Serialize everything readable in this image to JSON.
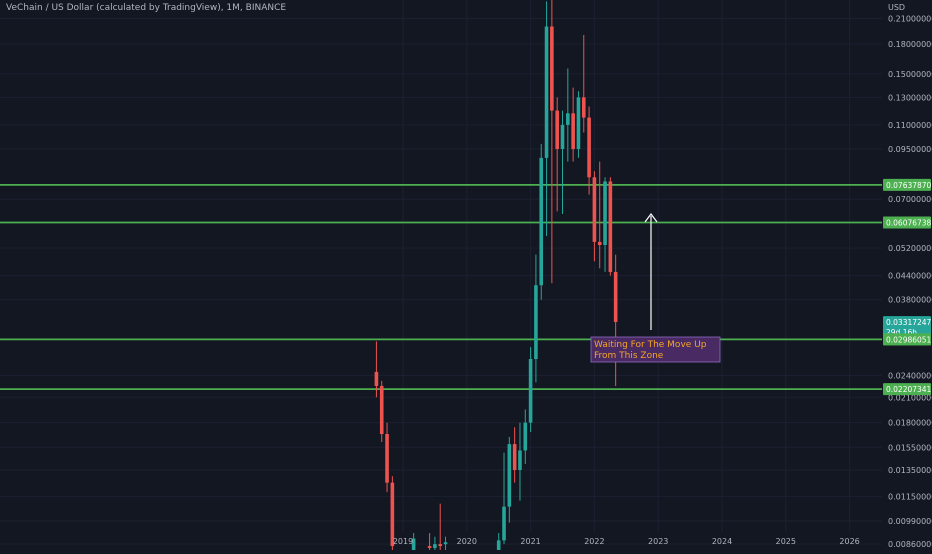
{
  "title": "VeChain / US Dollar (calculated by TradingView), 1M, BINANCE",
  "currency_label": "USD",
  "annotation": {
    "line1": "Waiting For The Move Up",
    "line2": "From This Zone"
  },
  "colors": {
    "background": "#131722",
    "grid": "#1c2030",
    "text": "#b2b5be",
    "up": "#26a69a",
    "down": "#ef5350",
    "level_line": "#4caf50",
    "level_tag": "#4caf50",
    "price_tag": "#26a69a",
    "annotation_bg": "#4a2a63",
    "annotation_border": "#8e6cc4",
    "annotation_text": "#f5a623",
    "arrow": "#ffffff"
  },
  "chart_data": {
    "type": "candlestick",
    "title": "VeChain / US Dollar (calculated by TradingView), 1M, BINANCE",
    "y_scale": "log",
    "ylim": [
      0.0083,
      0.235
    ],
    "xlim": [
      "2017-12-01",
      "2026-04-01"
    ],
    "y_ticks": [
      "0.21000000",
      "0.18000000",
      "0.15000000",
      "0.13000000",
      "0.11000000",
      "0.09500000",
      "0.07000000",
      "0.05200000",
      "0.04400000",
      "0.03800000",
      "0.02400000",
      "0.02100000",
      "0.01800000",
      "0.01550000",
      "0.01350000",
      "0.01150000",
      "0.00990000",
      "0.00860000"
    ],
    "x_ticks": [
      "2019",
      "2020",
      "2021",
      "2022",
      "2023",
      "2024",
      "2025",
      "2026"
    ],
    "horizontal_levels": [
      "0.07637870",
      "0.06076738",
      "0.02986051",
      "0.02207341"
    ],
    "current_price": "0.03317247",
    "countdown": "29d 16h",
    "candles": [
      {
        "t": "2018-08",
        "o": 0.0245,
        "h": 0.0295,
        "l": 0.021,
        "c": 0.0225
      },
      {
        "t": "2018-09",
        "o": 0.0225,
        "h": 0.0232,
        "l": 0.016,
        "c": 0.0168
      },
      {
        "t": "2018-10",
        "o": 0.0168,
        "h": 0.018,
        "l": 0.0118,
        "c": 0.0125
      },
      {
        "t": "2018-11",
        "o": 0.0125,
        "h": 0.013,
        "l": 0.008,
        "c": 0.0085
      },
      {
        "t": "2019-03",
        "o": 0.0083,
        "h": 0.0092,
        "l": 0.0082,
        "c": 0.0089
      },
      {
        "t": "2019-06",
        "o": 0.0085,
        "h": 0.0092,
        "l": 0.0082,
        "c": 0.0084
      },
      {
        "t": "2019-07",
        "o": 0.0084,
        "h": 0.009,
        "l": 0.0082,
        "c": 0.0086
      },
      {
        "t": "2019-08",
        "o": 0.0086,
        "h": 0.011,
        "l": 0.0082,
        "c": 0.0085
      },
      {
        "t": "2019-09",
        "o": 0.0086,
        "h": 0.009,
        "l": 0.0082,
        "c": 0.0087
      },
      {
        "t": "2020-07",
        "o": 0.0083,
        "h": 0.0092,
        "l": 0.0082,
        "c": 0.0088
      },
      {
        "t": "2020-08",
        "o": 0.0088,
        "h": 0.015,
        "l": 0.0086,
        "c": 0.0108
      },
      {
        "t": "2020-09",
        "o": 0.0108,
        "h": 0.0165,
        "l": 0.0098,
        "c": 0.0158
      },
      {
        "t": "2020-10",
        "o": 0.0158,
        "h": 0.0175,
        "l": 0.0125,
        "c": 0.0135
      },
      {
        "t": "2020-11",
        "o": 0.0135,
        "h": 0.018,
        "l": 0.0112,
        "c": 0.0152
      },
      {
        "t": "2020-12",
        "o": 0.0152,
        "h": 0.0195,
        "l": 0.014,
        "c": 0.018
      },
      {
        "t": "2021-01",
        "o": 0.018,
        "h": 0.0285,
        "l": 0.017,
        "c": 0.0265
      },
      {
        "t": "2021-02",
        "o": 0.0265,
        "h": 0.05,
        "l": 0.023,
        "c": 0.0415
      },
      {
        "t": "2021-03",
        "o": 0.0415,
        "h": 0.098,
        "l": 0.038,
        "c": 0.09
      },
      {
        "t": "2021-04",
        "o": 0.09,
        "h": 0.233,
        "l": 0.056,
        "c": 0.2
      },
      {
        "t": "2021-05",
        "o": 0.2,
        "h": 0.235,
        "l": 0.042,
        "c": 0.12
      },
      {
        "t": "2021-06",
        "o": 0.12,
        "h": 0.13,
        "l": 0.065,
        "c": 0.095
      },
      {
        "t": "2021-07",
        "o": 0.095,
        "h": 0.12,
        "l": 0.064,
        "c": 0.11
      },
      {
        "t": "2021-08",
        "o": 0.11,
        "h": 0.155,
        "l": 0.088,
        "c": 0.118
      },
      {
        "t": "2021-09",
        "o": 0.118,
        "h": 0.138,
        "l": 0.088,
        "c": 0.095
      },
      {
        "t": "2021-10",
        "o": 0.095,
        "h": 0.135,
        "l": 0.09,
        "c": 0.13
      },
      {
        "t": "2021-11",
        "o": 0.13,
        "h": 0.19,
        "l": 0.105,
        "c": 0.115
      },
      {
        "t": "2021-12",
        "o": 0.115,
        "h": 0.123,
        "l": 0.072,
        "c": 0.08
      },
      {
        "t": "2022-01",
        "o": 0.08,
        "h": 0.083,
        "l": 0.048,
        "c": 0.054
      },
      {
        "t": "2022-02",
        "o": 0.054,
        "h": 0.088,
        "l": 0.046,
        "c": 0.053
      },
      {
        "t": "2022-03",
        "o": 0.053,
        "h": 0.08,
        "l": 0.045,
        "c": 0.078
      },
      {
        "t": "2022-04",
        "o": 0.078,
        "h": 0.08,
        "l": 0.044,
        "c": 0.045
      },
      {
        "t": "2022-05",
        "o": 0.045,
        "h": 0.05,
        "l": 0.0225,
        "c": 0.0332
      }
    ]
  }
}
